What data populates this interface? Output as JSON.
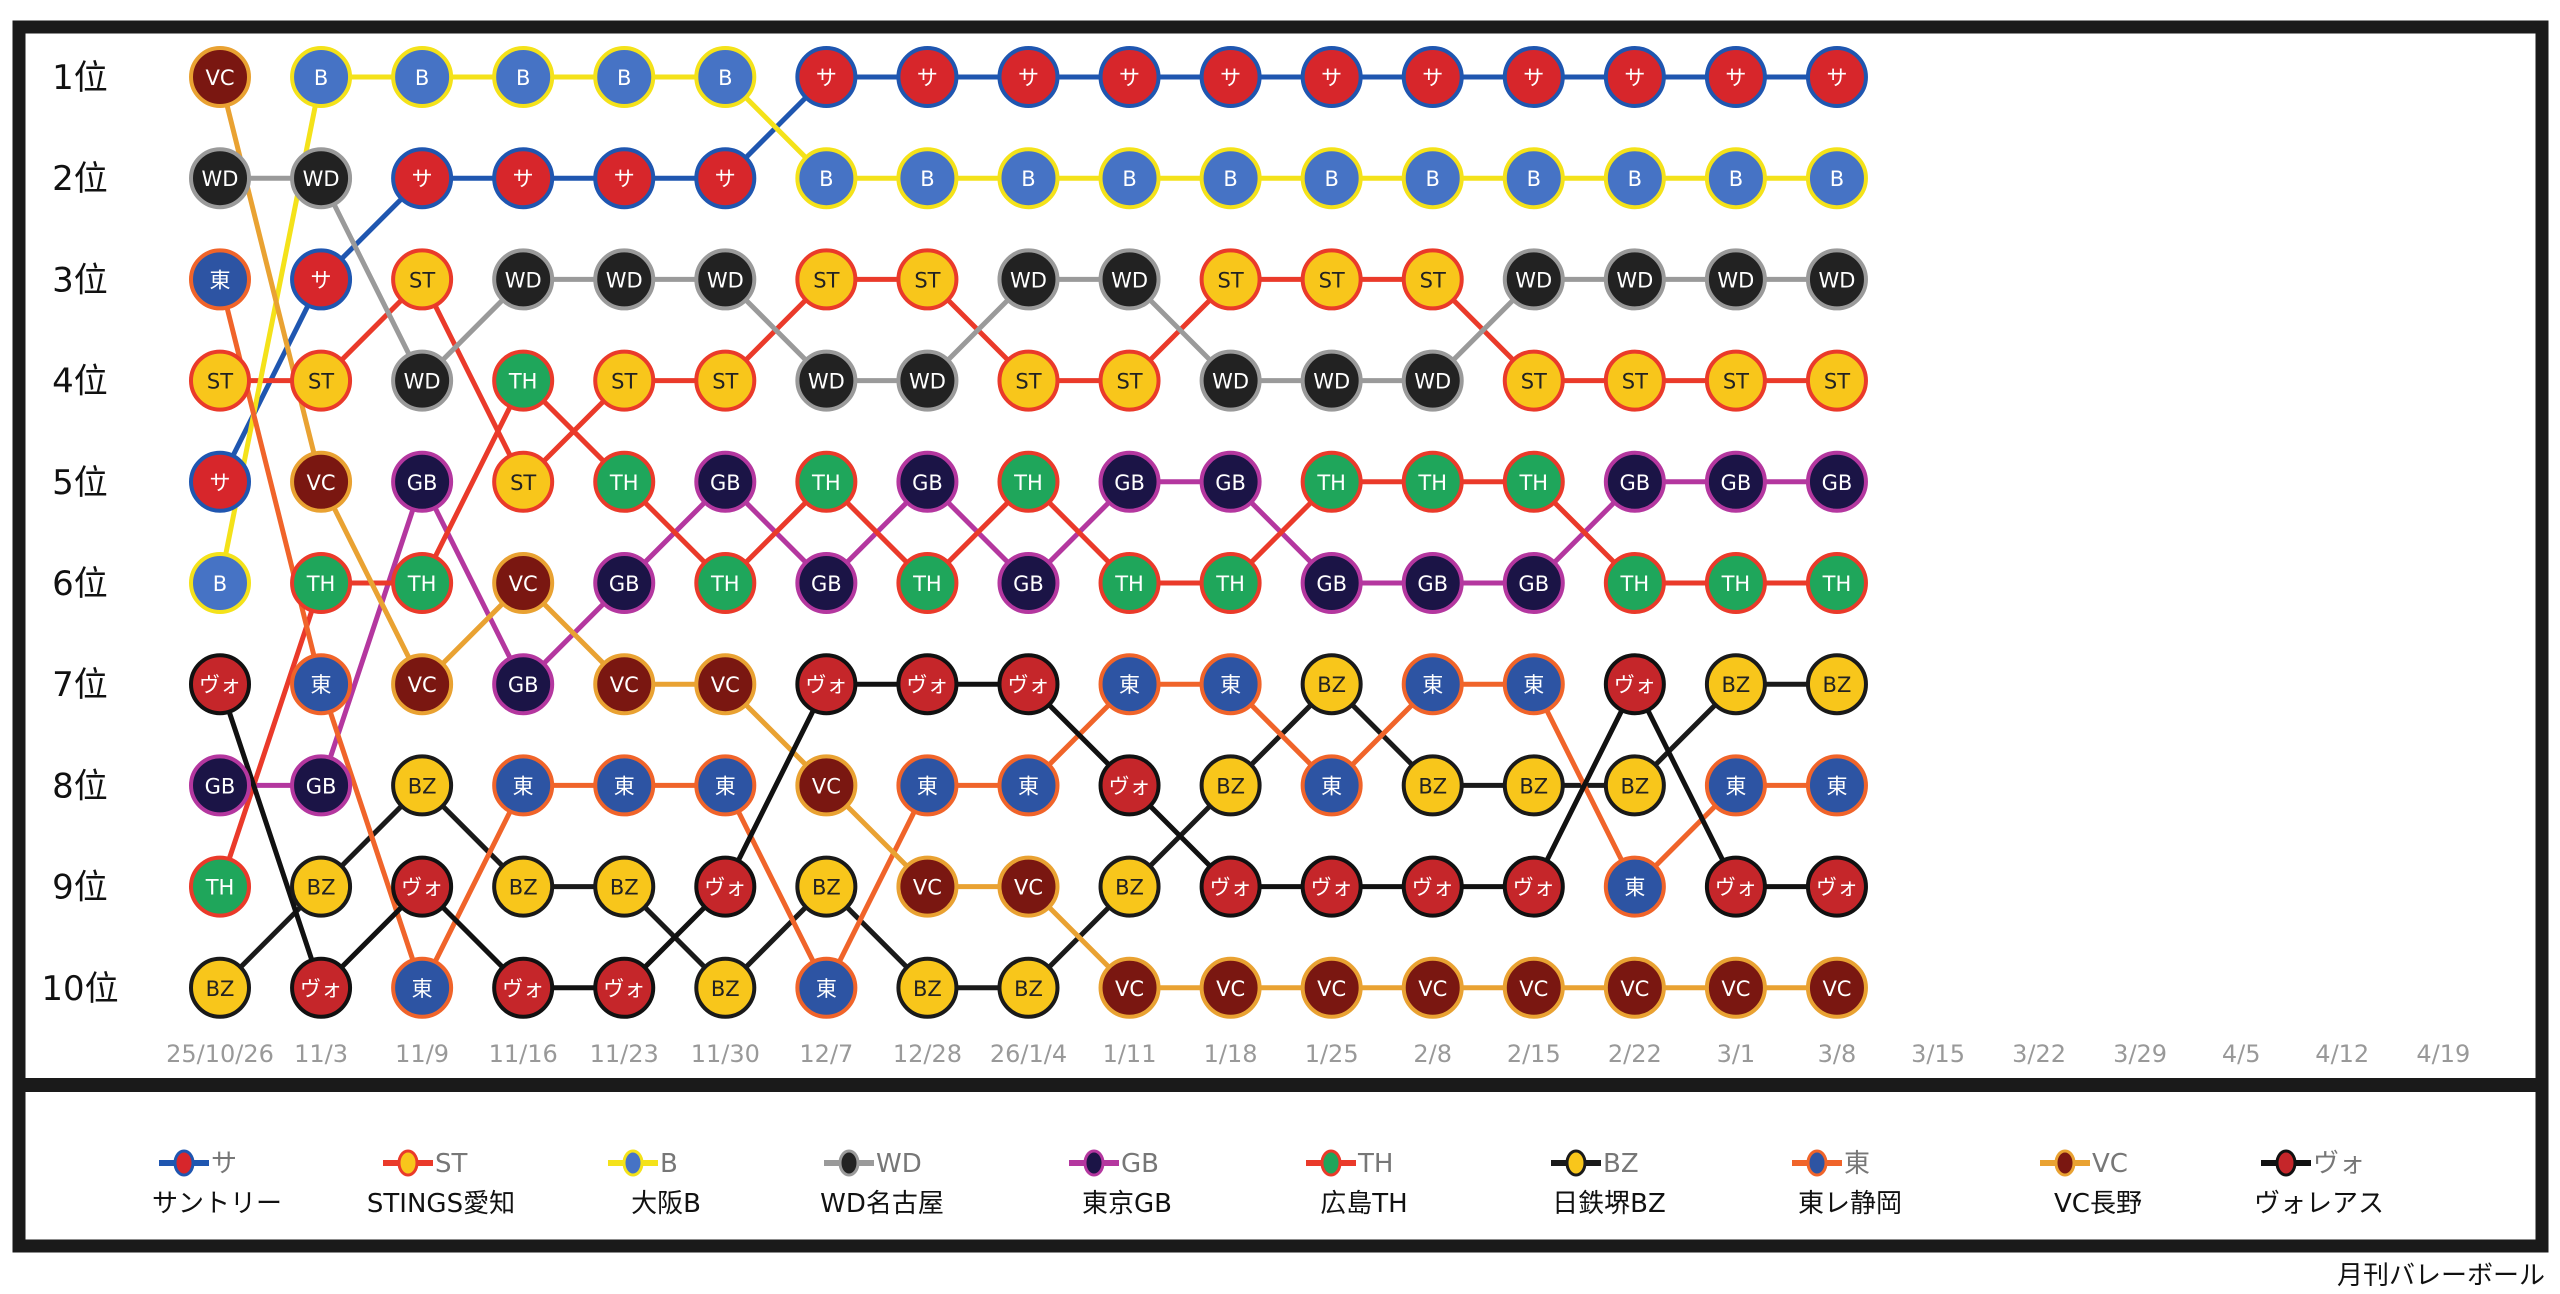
{
  "chart_data": {
    "type": "line",
    "title": "",
    "xlabel": "",
    "ylabel": "",
    "rank_labels": [
      "1位",
      "2位",
      "3位",
      "4位",
      "5位",
      "6位",
      "7位",
      "8位",
      "9位",
      "10位"
    ],
    "dates": [
      "25/10/26",
      "11/3",
      "11/9",
      "11/16",
      "11/23",
      "11/30",
      "12/7",
      "12/28",
      "26/1/4",
      "1/11",
      "1/18",
      "1/25",
      "2/8",
      "2/15",
      "2/22",
      "3/1",
      "3/8",
      "3/15",
      "3/22",
      "3/29",
      "4/5",
      "4/12",
      "4/19"
    ],
    "ylim": [
      1,
      10
    ],
    "series": [
      {
        "code": "サ",
        "name": "サントリー",
        "fill": "#d7262b",
        "border": "#1f56b0",
        "line": "#1f56b0",
        "text": "#ffffff",
        "ranks": [
          5,
          3,
          2,
          2,
          2,
          2,
          1,
          1,
          1,
          1,
          1,
          1,
          1,
          1,
          1,
          1,
          1
        ]
      },
      {
        "code": "ST",
        "name": "STINGS愛知",
        "fill": "#f8c61b",
        "border": "#ea3a2a",
        "line": "#ea3a2a",
        "text": "#222222",
        "ranks": [
          4,
          4,
          3,
          5,
          4,
          4,
          3,
          3,
          4,
          4,
          3,
          3,
          3,
          4,
          4,
          4,
          4
        ]
      },
      {
        "code": "B",
        "name": "大阪B",
        "fill": "#4673c5",
        "border": "#f4e21a",
        "line": "#f4e21a",
        "text": "#ffffff",
        "ranks": [
          6,
          1,
          1,
          1,
          1,
          1,
          2,
          2,
          2,
          2,
          2,
          2,
          2,
          2,
          2,
          2,
          2
        ]
      },
      {
        "code": "WD",
        "name": "WD名古屋",
        "fill": "#222222",
        "border": "#9a9a9a",
        "line": "#9a9a9a",
        "text": "#ffffff",
        "ranks": [
          2,
          2,
          4,
          3,
          3,
          3,
          4,
          4,
          3,
          3,
          4,
          4,
          4,
          3,
          3,
          3,
          3
        ]
      },
      {
        "code": "GB",
        "name": "東京GB",
        "fill": "#1b1446",
        "border": "#b4379f",
        "line": "#b4379f",
        "text": "#ffffff",
        "ranks": [
          8,
          8,
          5,
          7,
          6,
          5,
          6,
          5,
          6,
          5,
          5,
          6,
          6,
          6,
          5,
          5,
          5
        ]
      },
      {
        "code": "TH",
        "name": "広島TH",
        "fill": "#1fa65b",
        "border": "#ea3a2a",
        "line": "#ea3a2a",
        "text": "#ffffff",
        "ranks": [
          9,
          6,
          6,
          4,
          5,
          6,
          5,
          6,
          5,
          6,
          6,
          5,
          5,
          5,
          6,
          6,
          6
        ]
      },
      {
        "code": "BZ",
        "name": "日鉄堺BZ",
        "fill": "#f8c61b",
        "border": "#1a1a1a",
        "line": "#1a1a1a",
        "text": "#222222",
        "ranks": [
          10,
          9,
          8,
          9,
          9,
          10,
          9,
          10,
          10,
          9,
          8,
          7,
          8,
          8,
          8,
          7,
          7
        ]
      },
      {
        "code": "東",
        "name": "東レ静岡",
        "fill": "#2d54a3",
        "border": "#f0642a",
        "line": "#f0642a",
        "text": "#ffffff",
        "ranks": [
          3,
          7,
          10,
          8,
          8,
          8,
          10,
          8,
          8,
          7,
          7,
          8,
          7,
          7,
          9,
          8,
          8
        ]
      },
      {
        "code": "VC",
        "name": "VC長野",
        "fill": "#7a1711",
        "border": "#e9a232",
        "line": "#e9a232",
        "text": "#ffffff",
        "ranks": [
          1,
          5,
          7,
          6,
          7,
          7,
          8,
          9,
          9,
          10,
          10,
          10,
          10,
          10,
          10,
          10,
          10
        ]
      },
      {
        "code": "ヴォ",
        "name": "ヴォレアス",
        "fill": "#c5262a",
        "border": "#111111",
        "line": "#111111",
        "text": "#ffffff",
        "ranks": [
          7,
          10,
          9,
          10,
          10,
          9,
          7,
          7,
          7,
          8,
          9,
          9,
          9,
          9,
          7,
          9,
          9
        ]
      }
    ],
    "legend": "bottom",
    "grid": false
  },
  "source": "月刊バレーボール"
}
